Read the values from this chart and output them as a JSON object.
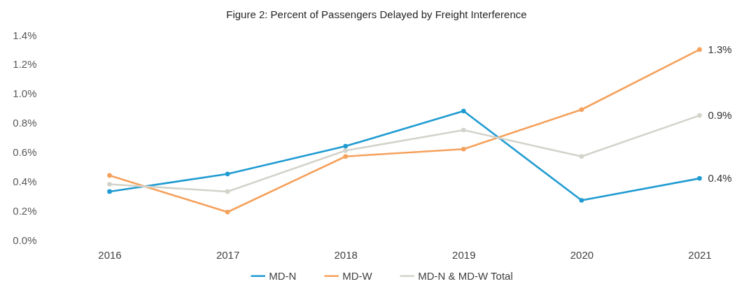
{
  "chart_data": {
    "type": "line",
    "title": "Figure 2: Percent of Passengers Delayed by Freight Interference",
    "categories": [
      "2016",
      "2017",
      "2018",
      "2019",
      "2020",
      "2021"
    ],
    "series": [
      {
        "name": "MD-N",
        "color": "#1f9bd1",
        "values": [
          0.33,
          0.45,
          0.64,
          0.88,
          0.27,
          0.42
        ],
        "value_labels": [
          null,
          null,
          null,
          null,
          null,
          "0.4%"
        ]
      },
      {
        "name": "MD-W",
        "color": "#f5a15c",
        "values": [
          0.44,
          0.19,
          0.57,
          0.62,
          0.89,
          1.3
        ],
        "value_labels": [
          null,
          null,
          null,
          null,
          null,
          "1.3%"
        ]
      },
      {
        "name": "MD-N & MD-W Total",
        "color": "#d3d3cb",
        "values": [
          0.38,
          0.33,
          0.61,
          0.75,
          0.57,
          0.85
        ],
        "value_labels": [
          null,
          null,
          null,
          null,
          null,
          "0.9%"
        ]
      }
    ],
    "ylim": [
      0,
      1.4
    ],
    "yticks": [
      {
        "value": 0,
        "label": "0.0%"
      },
      {
        "value": 0.2,
        "label": "0.2%"
      },
      {
        "value": 0.4,
        "label": "0.4%"
      },
      {
        "value": 0.6,
        "label": "0.6%"
      },
      {
        "value": 0.8,
        "label": "0.8%"
      },
      {
        "value": 1,
        "label": "1.0%"
      },
      {
        "value": 1.2,
        "label": "1.2%"
      },
      {
        "value": 1.4,
        "label": "1.4%"
      }
    ],
    "legend": "bottom",
    "marker": "circle",
    "line_style": "solid"
  }
}
